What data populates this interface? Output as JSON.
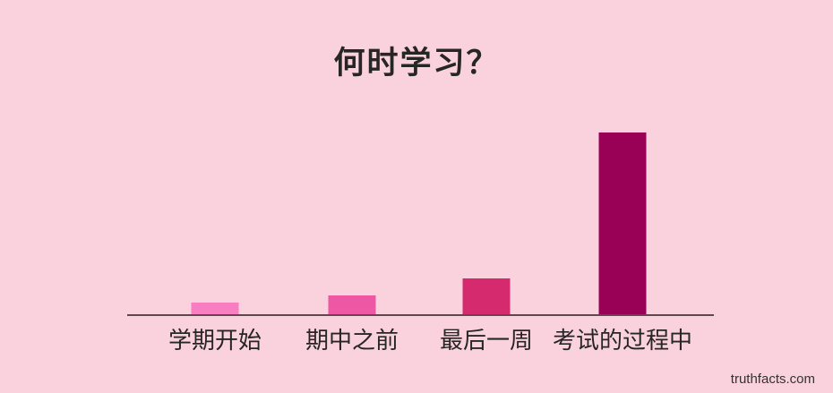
{
  "page": {
    "background_color": "#fad2de",
    "text_color": "#262626",
    "axis_color": "#5e4850",
    "watermark": "truthfacts.com"
  },
  "chart_data": {
    "type": "bar",
    "title": "何时学习？",
    "categories": [
      "学期开始",
      "期中之前",
      "最后一周",
      "考试的过程中"
    ],
    "values": [
      7,
      11,
      20,
      100
    ],
    "ylim": [
      0,
      100
    ],
    "xlabel": "",
    "ylabel": "",
    "grid": false,
    "legend": false,
    "bar_colors": [
      "#f87ec1",
      "#ee57a3",
      "#d52a6e",
      "#990157"
    ],
    "annotations": [
      "truthfacts.com"
    ]
  }
}
